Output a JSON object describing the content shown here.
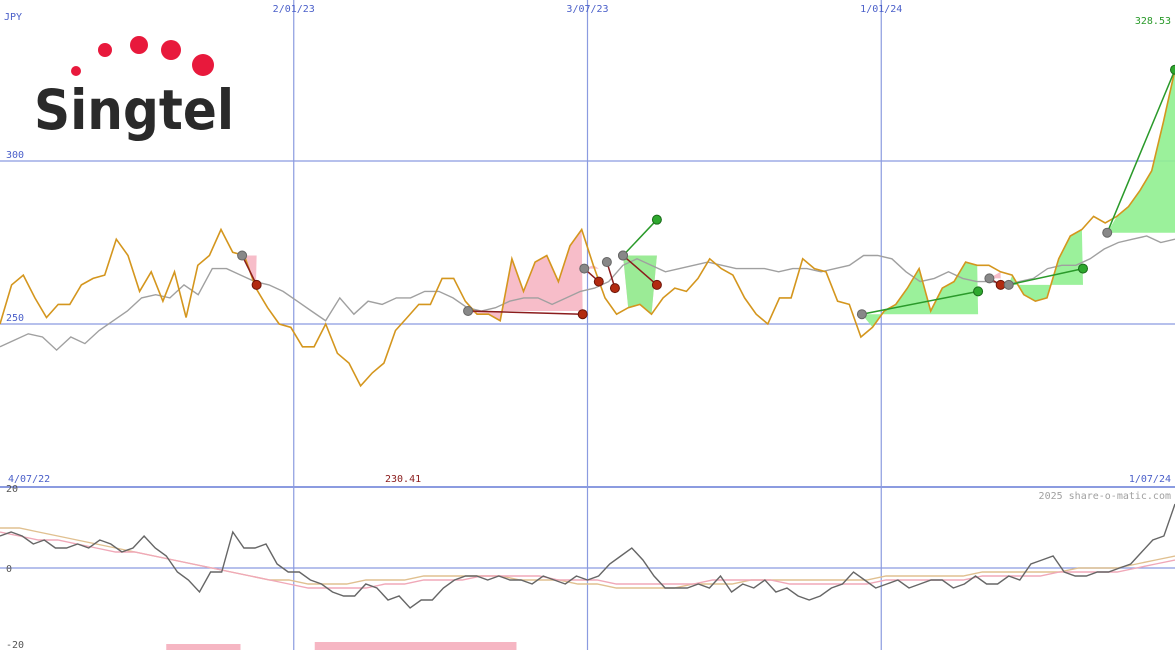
{
  "colors": {
    "price": "#d4961e",
    "ma": "#a0a0a0",
    "grid": "#8b9be0",
    "axis_text": "#4a5fc9",
    "gain_fill": "#90f090",
    "loss_fill": "#f6b6c3",
    "gain_line": "#2a9a2a",
    "loss_line": "#8a1c1c",
    "osc_main": "#666666",
    "osc_pink": "#f0a8b8",
    "osc_tan": "#e0c090",
    "bars": "#f6b6c3",
    "logo_text": "#2a2a2a",
    "logo_dot": "#e8193c"
  },
  "header": {
    "currency": "JPY",
    "max_label": "328.53",
    "min_label": "230.41",
    "start_date": "4/07/22",
    "end_date": "1/07/24",
    "watermark": "2025 share-o-matic.com"
  },
  "logo": {
    "text": "Singtel"
  },
  "chart_data": [
    {
      "type": "line",
      "title": "",
      "xlabel": "",
      "ylabel": "JPY",
      "x_ticks": [
        "2/01/23",
        "3/07/23",
        "1/01/24"
      ],
      "y_ticks": [
        "300",
        "250"
      ],
      "ylim": [
        200,
        350
      ],
      "grid": true,
      "series": [
        {
          "name": "price",
          "values": [
            250,
            262,
            265,
            258,
            252,
            256,
            256,
            262,
            264,
            265,
            276,
            271,
            260,
            266,
            257,
            266,
            252,
            268,
            271,
            279,
            272,
            271,
            261,
            255,
            250,
            249,
            243,
            243,
            250,
            241,
            238,
            231,
            235,
            238,
            248,
            252,
            256,
            256,
            264,
            264,
            257,
            253,
            253,
            251,
            270,
            260,
            269,
            271,
            263,
            274,
            279,
            268,
            258,
            253,
            255,
            256,
            253,
            258,
            261,
            260,
            264,
            270,
            267,
            265,
            258,
            253,
            250,
            258,
            258,
            270,
            267,
            266,
            257,
            256,
            246,
            249,
            254,
            256,
            261,
            267,
            254,
            261,
            263,
            269,
            268,
            268,
            266,
            265,
            259,
            257,
            258,
            270,
            277,
            279,
            283,
            281,
            283,
            286,
            291,
            297,
            312,
            328
          ]
        },
        {
          "name": "ma",
          "values": [
            243,
            245,
            247,
            246,
            242,
            246,
            244,
            248,
            251,
            254,
            258,
            259,
            258,
            262,
            259,
            267,
            267,
            265,
            263,
            262,
            260,
            257,
            254,
            251,
            258,
            253,
            257,
            256,
            258,
            258,
            260,
            260,
            258,
            255,
            254,
            255,
            257,
            258,
            258,
            256,
            258,
            260,
            261,
            263,
            268,
            270,
            268,
            266,
            267,
            268,
            269,
            268,
            267,
            267,
            267,
            266,
            267,
            267,
            266,
            267,
            268,
            271,
            271,
            270,
            266,
            263,
            264,
            266,
            264,
            263,
            263,
            262,
            263,
            264,
            267,
            268,
            268,
            270,
            273,
            275,
            276,
            277,
            275,
            276
          ]
        }
      ],
      "markers": [
        {
          "kind": "loss",
          "x": "2022-12-01",
          "y": 271,
          "x2": "2022-12-10",
          "y2": 262
        },
        {
          "kind": "loss",
          "x": "2023-04-20",
          "y": 254,
          "x2": "2023-06-30",
          "y2": 253
        },
        {
          "kind": "loss",
          "x": "2023-07-01",
          "y": 267,
          "x2": "2023-07-10",
          "y2": 263
        },
        {
          "kind": "loss",
          "x": "2023-07-15",
          "y": 269,
          "x2": "2023-07-20",
          "y2": 261
        },
        {
          "kind": "loss",
          "x": "2023-07-25",
          "y": 271,
          "x2": "2023-08-15",
          "y2": 262
        },
        {
          "kind": "gain",
          "x": "2023-07-25",
          "y": 271,
          "x2": "2023-08-15",
          "y2": 282
        },
        {
          "kind": "gain",
          "x": "2023-12-20",
          "y": 253,
          "x2": "2024-03-01",
          "y2": 260
        },
        {
          "kind": "loss",
          "x": "2024-03-08",
          "y": 264,
          "x2": "2024-03-15",
          "y2": 262
        },
        {
          "kind": "gain",
          "x": "2024-03-20",
          "y": 262,
          "x2": "2024-05-05",
          "y2": 267
        },
        {
          "kind": "gain",
          "x": "2024-05-20",
          "y": 278,
          "x2": "2024-07-01",
          "y2": 328
        }
      ]
    },
    {
      "type": "line",
      "title": "",
      "xlabel": "",
      "ylabel": "",
      "y_ticks": [
        "20",
        "0",
        "-20"
      ],
      "ylim": [
        -20,
        20
      ],
      "grid": true,
      "series": [
        {
          "name": "osc",
          "values": [
            8,
            9,
            8,
            6,
            7,
            5,
            5,
            6,
            5,
            7,
            6,
            4,
            5,
            8,
            5,
            3,
            -1,
            -3,
            -6,
            -1,
            -1,
            9,
            5,
            5,
            6,
            1,
            -1,
            -1,
            -3,
            -4,
            -6,
            -7,
            -7,
            -4,
            -5,
            -8,
            -7,
            -10,
            -8,
            -8,
            -5,
            -3,
            -2,
            -2,
            -3,
            -2,
            -3,
            -3,
            -4,
            -2,
            -3,
            -4,
            -2,
            -3,
            -2,
            1,
            3,
            5,
            2,
            -2,
            -5,
            -5,
            -5,
            -4,
            -5,
            -2,
            -6,
            -4,
            -5,
            -3,
            -6,
            -5,
            -7,
            -8,
            -7,
            -5,
            -4,
            -1,
            -3,
            -5,
            -4,
            -3,
            -5,
            -4,
            -3,
            -3,
            -5,
            -4,
            -2,
            -4,
            -4,
            -2,
            -3,
            1,
            2,
            3,
            -1,
            -2,
            -2,
            -1,
            -1,
            0,
            1,
            4,
            7,
            8,
            16
          ]
        },
        {
          "name": "pink",
          "values": [
            9,
            8,
            7,
            7,
            6,
            5,
            4,
            4,
            3,
            2,
            1,
            0,
            -1,
            -2,
            -3,
            -4,
            -5,
            -5,
            -5,
            -5,
            -4,
            -4,
            -3,
            -3,
            -3,
            -2,
            -2,
            -2,
            -2,
            -3,
            -3,
            -3,
            -4,
            -4,
            -4,
            -4,
            -4,
            -3,
            -3,
            -3,
            -3,
            -4,
            -4,
            -4,
            -4,
            -4,
            -3,
            -3,
            -3,
            -3,
            -3,
            -2,
            -2,
            -2,
            -2,
            -1,
            -1,
            -1,
            -1,
            0,
            1,
            2
          ]
        },
        {
          "name": "tan",
          "values": [
            10,
            10,
            9,
            8,
            7,
            6,
            5,
            4,
            3,
            2,
            1,
            0,
            -1,
            -2,
            -3,
            -3,
            -4,
            -4,
            -4,
            -3,
            -3,
            -3,
            -2,
            -2,
            -2,
            -2,
            -2,
            -3,
            -3,
            -3,
            -4,
            -4,
            -5,
            -5,
            -5,
            -5,
            -4,
            -4,
            -4,
            -3,
            -3,
            -3,
            -3,
            -3,
            -3,
            -3,
            -2,
            -2,
            -2,
            -2,
            -2,
            -1,
            -1,
            -1,
            -1,
            -1,
            0,
            0,
            0,
            1,
            2,
            3
          ]
        }
      ],
      "bars": [
        {
          "x0": "2022-10-15",
          "x1": "2022-11-30",
          "value": 1.5
        },
        {
          "x0": "2023-01-15",
          "x1": "2023-05-20",
          "value": 2.0
        }
      ]
    }
  ]
}
